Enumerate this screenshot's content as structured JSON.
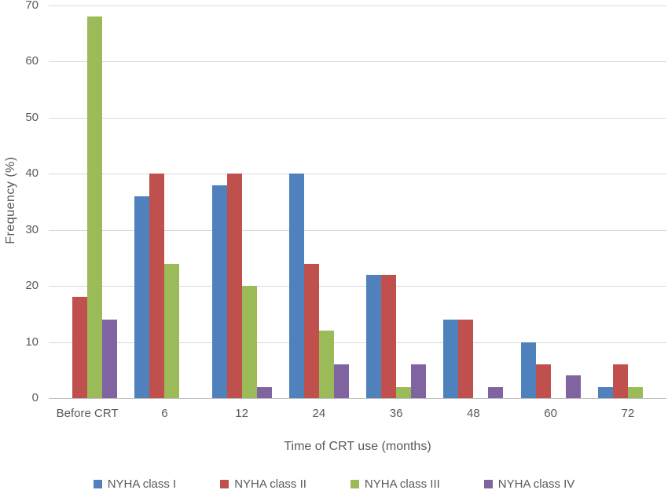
{
  "chart_data": {
    "type": "bar",
    "title": "",
    "xlabel": "Time of CRT use (months)",
    "ylabel": "Frequency (%)",
    "ylim": [
      0,
      70
    ],
    "yticks": [
      0,
      10,
      20,
      30,
      40,
      50,
      60,
      70
    ],
    "grid": true,
    "legend_position": "bottom",
    "categories": [
      "Before CRT",
      "6",
      "12",
      "24",
      "36",
      "48",
      "60",
      "72"
    ],
    "series": [
      {
        "name": "NYHA class I",
        "color": "#4f81bd",
        "values": [
          0,
          36,
          38,
          40,
          22,
          14,
          10,
          2
        ]
      },
      {
        "name": "NYHA class II",
        "color": "#c0504d",
        "values": [
          18,
          40,
          40,
          24,
          22,
          14,
          6,
          6
        ]
      },
      {
        "name": "NYHA class III",
        "color": "#9bbb59",
        "values": [
          68,
          24,
          20,
          12,
          2,
          0,
          0,
          2
        ]
      },
      {
        "name": "NYHA class IV",
        "color": "#8064a2",
        "values": [
          14,
          0,
          2,
          6,
          6,
          2,
          4,
          0
        ]
      }
    ],
    "colors": {
      "gridline": "#d9d9d9",
      "axis_line": "#bfbfbf",
      "tick_text": "#595959"
    }
  }
}
